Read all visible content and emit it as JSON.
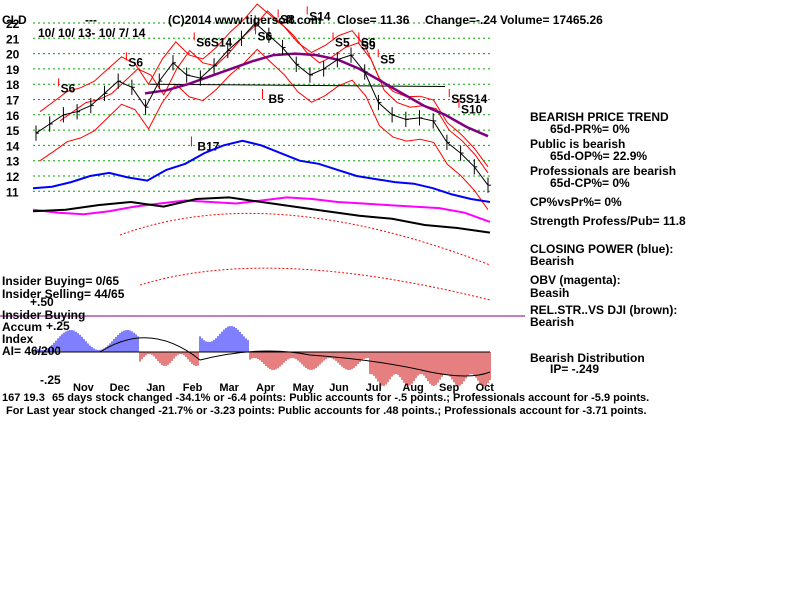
{
  "header": {
    "symbol": "CLD",
    "dashes": "---",
    "copyright": "(C)2014 www.tigersoft.com",
    "close": "Close= 11.36",
    "change": "Change=-.24",
    "volume": "Volume= 17465.26",
    "date_range": "10/ 10/ 13- 10/ 7/ 14"
  },
  "colors": {
    "grid": "#00aa00",
    "closing_power": "#0000ff",
    "obv": "#ff00ff",
    "relstr": "#000000",
    "ma": "#800080",
    "band": "#ff0000",
    "signal": "#ff0000",
    "accum_pos": "#0000ff",
    "accum_neg": "#cc0000"
  },
  "chart_data": {
    "type": "line",
    "y_ticks": [
      22,
      21,
      20,
      19,
      18,
      17,
      16,
      15,
      14,
      13,
      12,
      11
    ],
    "ylim": [
      10.5,
      22.8
    ],
    "months": [
      "Nov",
      "Dec",
      "Jan",
      "Feb",
      "Mar",
      "Apr",
      "May",
      "Jun",
      "Jul",
      "Aug",
      "Sep",
      "Oct"
    ],
    "price": [
      14.8,
      15.4,
      16.0,
      16.2,
      16.6,
      17.4,
      18.2,
      17.8,
      16.5,
      18.2,
      19.4,
      18.6,
      18.4,
      19.2,
      20.2,
      21.0,
      22.0,
      21.2,
      20.4,
      19.3,
      18.6,
      19.0,
      19.6,
      19.9,
      18.8,
      16.8,
      16.0,
      15.7,
      15.8,
      15.6,
      14.2,
      13.5,
      12.6,
      11.4
    ],
    "ma_line": [
      17.4,
      17.6,
      18.0,
      18.5,
      19.0,
      19.5,
      19.9,
      20.0,
      19.9,
      19.6,
      19.0,
      18.2,
      17.4,
      16.6,
      16.0,
      15.2,
      14.6
    ],
    "support_line": [
      18.0,
      17.85
    ],
    "signals": [
      {
        "label": "S6",
        "x": 3.5,
        "y": 17.6
      },
      {
        "label": "S6",
        "x": 14,
        "y": 19.3
      },
      {
        "label": "S6S14",
        "x": 24.5,
        "y": 20.6
      },
      {
        "label": "S6",
        "x": 34,
        "y": 21.0
      },
      {
        "label": "S8",
        "x": 37.5,
        "y": 22.1
      },
      {
        "label": "S14",
        "x": 42,
        "y": 22.3
      },
      {
        "label": "S5",
        "x": 46,
        "y": 20.6
      },
      {
        "label": "S6",
        "x": 50,
        "y": 20.6
      },
      {
        "label": "S9",
        "x": 50,
        "y": 20.4
      },
      {
        "label": "S5",
        "x": 53,
        "y": 19.5
      },
      {
        "label": "S5S14",
        "x": 64,
        "y": 16.9
      },
      {
        "label": "S10",
        "x": 65.5,
        "y": 16.2
      }
    ],
    "buy_signals": [
      {
        "label": "B5",
        "x": 36,
        "y": 16.9
      },
      {
        "label": "B17",
        "x": 25,
        "y": 13.8
      }
    ],
    "closing_power": [
      11.2,
      11.3,
      11.6,
      12.0,
      12.2,
      11.9,
      11.7,
      12.4,
      12.8,
      13.5,
      14.0,
      14.3,
      14.0,
      13.5,
      13.0,
      12.8,
      12.4,
      12.0,
      11.8,
      11.6,
      11.5,
      11.2,
      10.8,
      10.5,
      10.3
    ],
    "obv": [
      9.8,
      9.6,
      9.5,
      9.7,
      10.0,
      10.2,
      10.4,
      10.3,
      10.2,
      10.4,
      10.6,
      10.5,
      10.3,
      10.2,
      10.1,
      10.0,
      9.9,
      9.6,
      9.0
    ],
    "relstr": [
      9.7,
      9.8,
      10.1,
      10.3,
      10.0,
      10.5,
      10.6,
      10.3,
      10.0,
      9.7,
      9.4,
      9.2,
      8.8,
      8.6,
      8.3
    ],
    "accum_ticks": [
      "+.25",
      "-.25"
    ]
  },
  "panel": {
    "trend_title": "BEARISH PRICE TREND",
    "pr": "65d-PR%= 0%",
    "public": "Public is bearish",
    "op": "65d-OP%= 22.9%",
    "professionals": "Professionals are bearish",
    "cp": "65d-CP%= 0%",
    "cpvspr": "CP%vsPr%= 0%",
    "strength": "Strength Profess/Pub= 11.8",
    "closing_power": "CLOSING POWER (blue):",
    "cp_state": "Bearish",
    "obv": "OBV (magenta):",
    "obv_state": "Beasih",
    "relstr": "REL.STR..VS DJI (brown):",
    "relstr_state": "Bearish",
    "distribution": "Bearish Distribution",
    "ip": "IP= -.249"
  },
  "insider": {
    "buying": "Insider Buying= 0/65",
    "selling": "Insider Selling= 44/65",
    "tick": "+.50",
    "label": "Insider Buying"
  },
  "accum": {
    "label1": "Accum",
    "tick_pos": "+.25",
    "label2": "Index",
    "ai": "AI= 46/200",
    "tick_neg": "-.25"
  },
  "footer": {
    "line1_prefix": "167 19.3",
    "line1": "65 days stock changed -34.1% or -6.4 points:  Public accounts for -.5 points.;  Professionals account for -5.9 points.",
    "line2": "For Last year stock changed -21.7% or -3.23 points:  Public accounts for  .48 points.;  Professionals account for -3.71 points."
  }
}
